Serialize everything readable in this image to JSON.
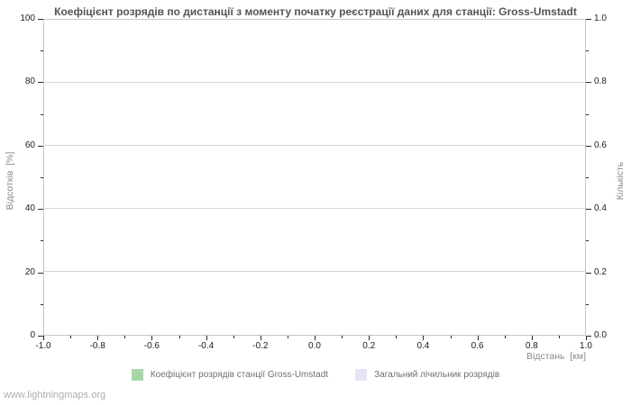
{
  "watermark": "www.lightningmaps.org",
  "chart_data": {
    "type": "line",
    "title": "Коефіцієнт розрядів по дистанції з моменту початку реєстрації даних для станції: Gross-Umstadt",
    "x_axis": {
      "label": "Відстань  [км]",
      "range": [
        -1.0,
        1.0
      ],
      "ticks": [
        -1.0,
        -0.8,
        -0.6,
        -0.4,
        -0.2,
        0.0,
        0.2,
        0.4,
        0.6,
        0.8,
        1.0
      ],
      "tick_labels": [
        "-1.0",
        "-0.8",
        "-0.6",
        "-0.4",
        "-0.2",
        "0.0",
        "0.2",
        "0.4",
        "0.6",
        "0.8",
        "1.0"
      ],
      "minor_tick_step": 0.1
    },
    "y_axis_left": {
      "label": "Відсотків  [%]",
      "range": [
        0,
        100
      ],
      "ticks": [
        0,
        20,
        40,
        60,
        80,
        100
      ],
      "tick_labels": [
        "0",
        "20",
        "40",
        "60",
        "80",
        "100"
      ],
      "minor_tick_step": 10
    },
    "y_axis_right": {
      "label": "Кількість",
      "range": [
        0.0,
        1.0
      ],
      "ticks": [
        0.0,
        0.2,
        0.4,
        0.6,
        0.8,
        1.0
      ],
      "tick_labels": [
        "0.0",
        "0.2",
        "0.4",
        "0.6",
        "0.8",
        "1.0"
      ],
      "minor_tick_step": 0.1
    },
    "grid": true,
    "legend_position": "bottom",
    "series": [
      {
        "name": "Коефіцієнт розрядів станції Gross-Umstadt",
        "color": "#a7d7a7",
        "values": []
      },
      {
        "name": "Загальний лічильник розрядів",
        "color": "#e4e4f6",
        "values": []
      }
    ]
  }
}
